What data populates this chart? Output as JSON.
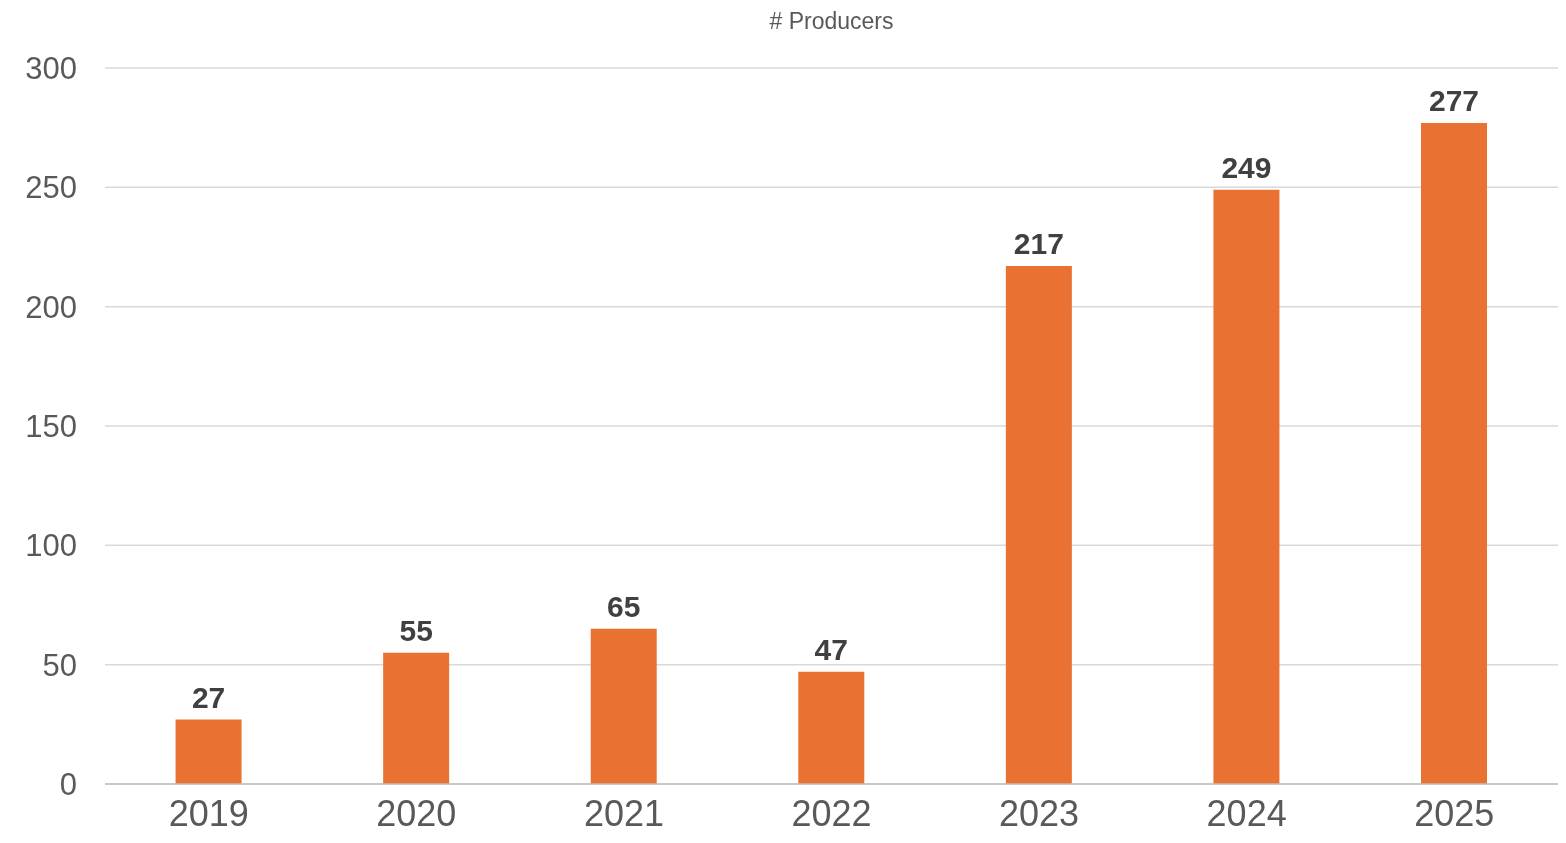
{
  "chart_data": {
    "type": "bar",
    "title": "# Producers",
    "categories": [
      "2019",
      "2020",
      "2021",
      "2022",
      "2023",
      "2024",
      "2025"
    ],
    "values": [
      27,
      55,
      65,
      47,
      217,
      249,
      277
    ],
    "color": "#e97132",
    "ylim": [
      0,
      300
    ],
    "yticks": [
      0,
      50,
      100,
      150,
      200,
      250,
      300
    ],
    "grid": "y",
    "data_labels": true
  }
}
